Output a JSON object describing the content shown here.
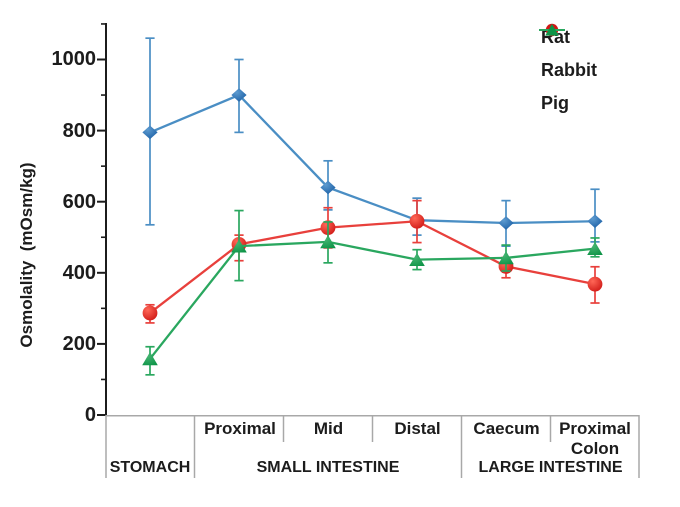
{
  "chart_data": {
    "type": "line",
    "title": "",
    "ylabel": "Osmolality  (mOsm/kg)",
    "ylim": [
      0,
      1100
    ],
    "y_major_ticks": [
      0,
      200,
      400,
      600,
      800,
      1000
    ],
    "y_minor_ticks": [
      100,
      300,
      500,
      700,
      900,
      1100
    ],
    "grid": false,
    "legend_position": "top-right",
    "axis_color": "#1c1c1c",
    "divider_color": "#a8a8a8",
    "categories": [
      "Stomach",
      "Proximal",
      "Mid",
      "Distal",
      "Caecum",
      "Proximal Colon"
    ],
    "segment_labels": [
      "Proximal",
      "Mid",
      "Distal",
      "Caecum",
      "Proximal Colon"
    ],
    "region_labels": [
      "STOMACH",
      "SMALL INTESTINE",
      "LARGE INTESTINE"
    ],
    "series": [
      {
        "name": "Rat",
        "marker": "diamond",
        "color": "#4a8ec4",
        "marker_color": "#1b5fa5",
        "marker_highlight": "#5d9bd0",
        "values": [
          795,
          900,
          640,
          548,
          540,
          545
        ],
        "err_up": [
          265,
          100,
          75,
          62,
          63,
          90
        ],
        "err_dn": [
          260,
          105,
          63,
          42,
          65,
          58
        ]
      },
      {
        "name": "Rabbit",
        "marker": "circle",
        "color": "#e8403c",
        "marker_color": "#cf1815",
        "marker_highlight": "#ff6757",
        "values": [
          287,
          480,
          527,
          545,
          418,
          368
        ],
        "err_up": [
          23,
          26,
          56,
          58,
          25,
          49
        ],
        "err_dn": [
          28,
          46,
          57,
          60,
          32,
          53
        ]
      },
      {
        "name": "Pig",
        "marker": "triangle",
        "color": "#2aa75f",
        "marker_color": "#0e9447",
        "marker_highlight": "#46b573",
        "values": [
          158,
          475,
          487,
          437,
          442,
          468
        ],
        "err_up": [
          34,
          100,
          56,
          28,
          36,
          30
        ],
        "err_dn": [
          45,
          97,
          59,
          28,
          37,
          23
        ]
      }
    ]
  }
}
